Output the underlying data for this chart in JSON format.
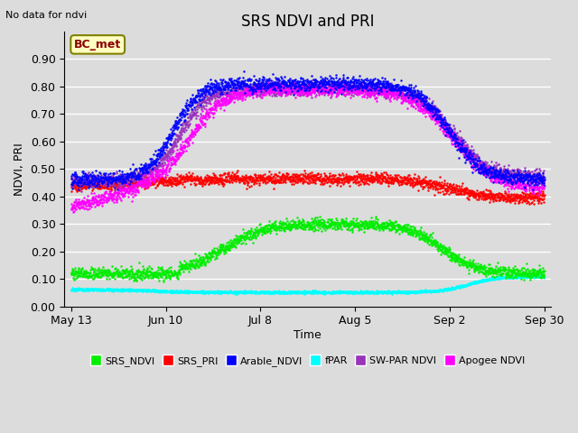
{
  "title": "SRS NDVI and PRI",
  "no_data_text": "No data for ndvi",
  "ylabel": "NDVI, PRI",
  "xlabel": "Time",
  "annotation": "BC_met",
  "x_tick_labels": [
    "May 13",
    "Jun 10",
    "Jul 8",
    "Aug 5",
    "Sep 2",
    "Sep 30"
  ],
  "ylim": [
    0.0,
    1.0
  ],
  "yticks": [
    0.0,
    0.1,
    0.2,
    0.3,
    0.4,
    0.5,
    0.6,
    0.7,
    0.8,
    0.9
  ],
  "background_color": "#dcdcdc",
  "grid_color": "#ffffff",
  "series_colors": {
    "SRS_NDVI": "#00ee00",
    "SRS_PRI": "#ff0000",
    "Arable_NDVI": "#0000ff",
    "fPAR": "#00ffff",
    "SW_PAR_NDVI": "#9933bb",
    "Apogee_NDVI": "#ff00ff"
  },
  "n_points": 2000,
  "xtick_positions": [
    0,
    28,
    56,
    84,
    112,
    140
  ]
}
